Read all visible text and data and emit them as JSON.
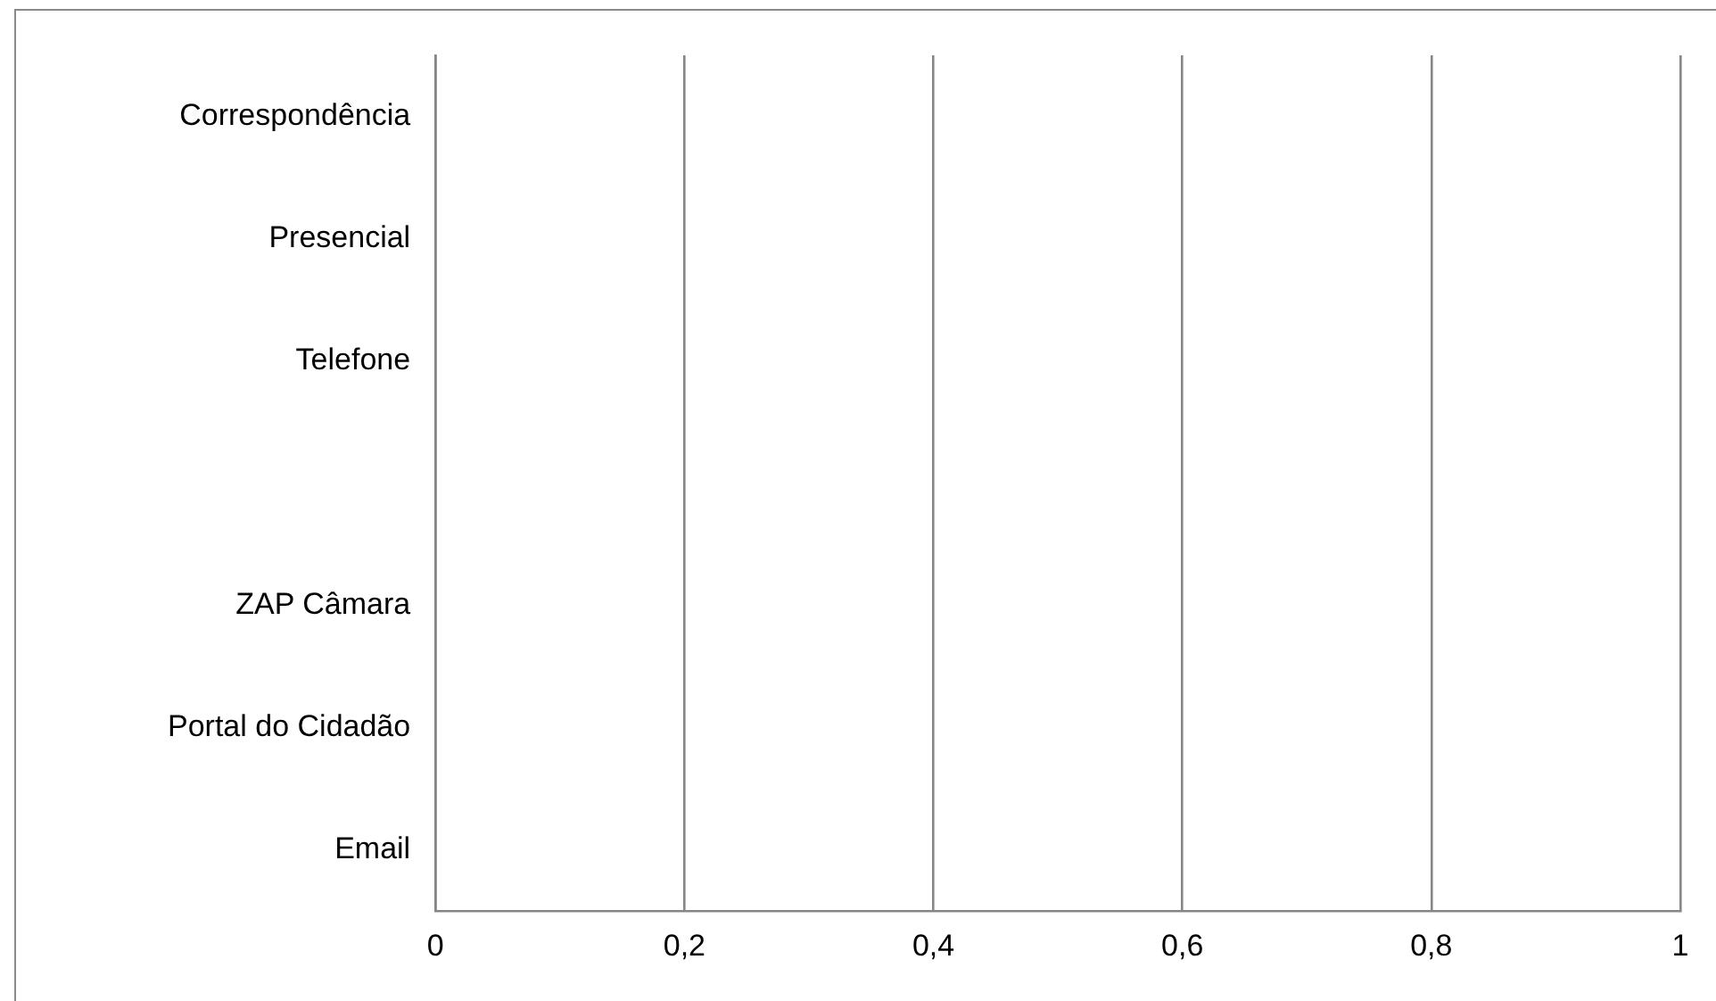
{
  "chart_data": {
    "type": "bar",
    "orientation": "horizontal",
    "categories": [
      "Correspondência",
      "Presencial",
      "Telefone",
      null,
      "ZAP Câmara",
      "Portal do Cidadão",
      "Email"
    ],
    "values": [
      0,
      0,
      0,
      0,
      0,
      0,
      0
    ],
    "xlim": [
      0,
      1
    ],
    "xticks": [
      0,
      {
        "value": 0.2,
        "label": "0,2"
      },
      {
        "value": 0.4,
        "label": "0,4"
      },
      {
        "value": 0.6,
        "label": "0,6"
      },
      {
        "value": 0.8,
        "label": "0,8"
      },
      1
    ],
    "grid": "x"
  }
}
